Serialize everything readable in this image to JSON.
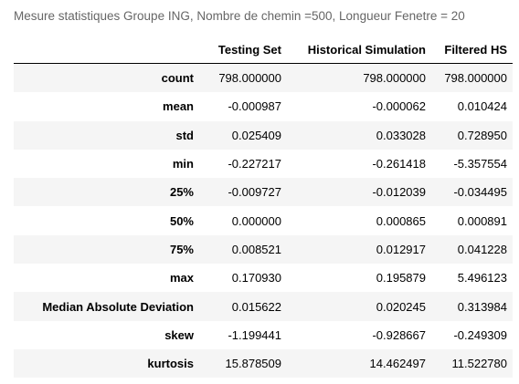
{
  "caption": "Mesure statistiques Groupe ING, Nombre de chemin =500, Longueur Fenetre = 20",
  "table": {
    "columns": [
      "",
      "Testing Set",
      "Historical Simulation",
      "Filtered HS"
    ],
    "rows": [
      {
        "label": "count",
        "values": [
          "798.000000",
          "798.000000",
          "798.000000"
        ]
      },
      {
        "label": "mean",
        "values": [
          "-0.000987",
          "-0.000062",
          "0.010424"
        ]
      },
      {
        "label": "std",
        "values": [
          "0.025409",
          "0.033028",
          "0.728950"
        ]
      },
      {
        "label": "min",
        "values": [
          "-0.227217",
          "-0.261418",
          "-5.357554"
        ]
      },
      {
        "label": "25%",
        "values": [
          "-0.009727",
          "-0.012039",
          "-0.034495"
        ]
      },
      {
        "label": "50%",
        "values": [
          "0.000000",
          "0.000865",
          "0.000891"
        ]
      },
      {
        "label": "75%",
        "values": [
          "0.008521",
          "0.012917",
          "0.041228"
        ]
      },
      {
        "label": "max",
        "values": [
          "0.170930",
          "0.195879",
          "5.496123"
        ]
      },
      {
        "label": "Median Absolute Deviation",
        "values": [
          "0.015622",
          "0.020245",
          "0.313984"
        ]
      },
      {
        "label": "skew",
        "values": [
          "-1.199441",
          "-0.928667",
          "-0.249309"
        ]
      },
      {
        "label": "kurtosis",
        "values": [
          "15.878509",
          "14.462497",
          "11.522780"
        ]
      }
    ]
  }
}
